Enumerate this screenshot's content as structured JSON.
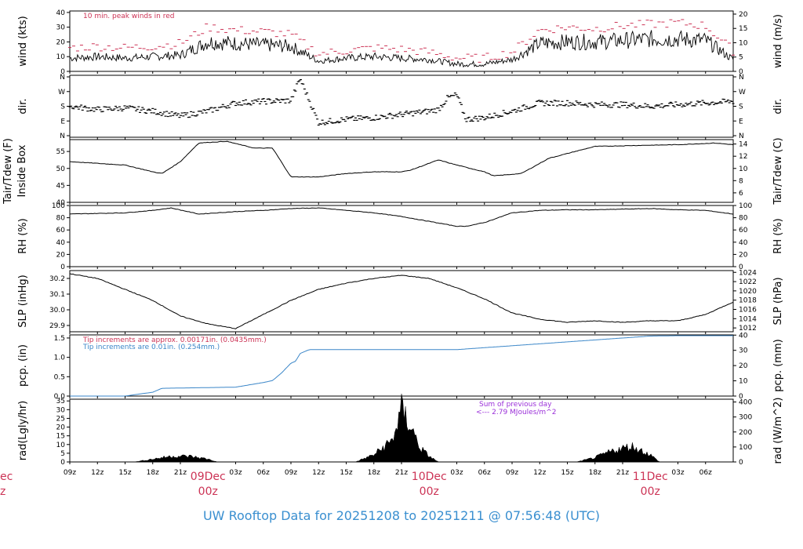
{
  "footer_title": "UW Rooftop Data for 20251208  to  20251211 @ 07:56:48  (UTC)",
  "colors": {
    "line": "#000000",
    "peak": "#cc3355",
    "precip": "#3a86c8",
    "annotation_purple": "#9b30d9",
    "date_label": "#cc3355",
    "title": "#3a8fd0"
  },
  "x_axis": {
    "tick_labels": [
      "09z",
      "12z",
      "15z",
      "18z",
      "21z",
      "03z",
      "06z",
      "09z",
      "12z",
      "15z",
      "18z",
      "21z",
      "03z",
      "06z",
      "09z",
      "12z",
      "15z",
      "18z",
      "21z",
      "03z",
      "06z"
    ],
    "day_labels": [
      {
        "date": "09Dec",
        "hour": "00z"
      },
      {
        "date": "10Dec",
        "hour": "00z"
      },
      {
        "date": "11Dec",
        "hour": "00z"
      }
    ],
    "edge_label": {
      "date": "ec",
      "hour": "z"
    }
  },
  "chart_data": [
    {
      "type": "line",
      "panel": "wind",
      "ylabel_left": "wind (kts)",
      "ylabel_right": "wind (m/s)",
      "yticks_left": [
        "0",
        "10",
        "20",
        "30",
        "40"
      ],
      "yticks_right": [
        "0",
        "5",
        "10",
        "15",
        "20"
      ],
      "ylim": [
        0,
        41
      ],
      "annotation": "10 min. peak winds in red",
      "series": [
        {
          "x": [
            0,
            3,
            6,
            9,
            12,
            15,
            18,
            21,
            24,
            27,
            30,
            33,
            36,
            39,
            42,
            45,
            48,
            51,
            54,
            57,
            60,
            63,
            66,
            69,
            72
          ],
          "values": [
            9,
            10,
            9,
            10,
            11,
            20,
            19,
            18,
            17,
            7,
            9,
            10,
            9,
            8,
            5,
            5,
            8,
            19,
            20,
            20,
            21,
            22,
            22,
            21,
            8
          ]
        },
        {
          "x": [
            0,
            3,
            6,
            9,
            12,
            15,
            18,
            21,
            24,
            27,
            30,
            33,
            36,
            39,
            42,
            45,
            48,
            51,
            54,
            57,
            60,
            63,
            66,
            69,
            72
          ],
          "values": [
            16,
            17,
            16,
            17,
            19,
            30,
            28,
            27,
            25,
            12,
            14,
            16,
            15,
            13,
            9,
            9,
            13,
            28,
            30,
            29,
            31,
            32,
            33,
            31,
            14
          ]
        }
      ]
    },
    {
      "type": "scatter",
      "panel": "dir",
      "ylabel_left": "dir.",
      "ylabel_right": "dir.",
      "yticks_left": [
        "N",
        "E",
        "S",
        "W",
        "N"
      ],
      "yticks_right": [
        "N",
        "E",
        "S",
        "W",
        "N"
      ],
      "ylim": [
        0,
        360
      ],
      "x": [
        0,
        3,
        6,
        9,
        12,
        15,
        18,
        21,
        24,
        25,
        27,
        30,
        33,
        36,
        39,
        40,
        41,
        42,
        43,
        45,
        48,
        51,
        54,
        57,
        60,
        63,
        66,
        69,
        72
      ],
      "values": [
        180,
        160,
        170,
        150,
        120,
        150,
        200,
        210,
        215,
        350,
        80,
        100,
        110,
        130,
        150,
        160,
        230,
        250,
        100,
        110,
        150,
        200,
        200,
        190,
        190,
        180,
        190,
        200,
        210
      ]
    },
    {
      "type": "line",
      "panel": "temp",
      "ylabel_left": "Tair/Tdew (F)\nInside Box",
      "ylabel_right": "Tair/Tdew (C)",
      "yticks_left": [
        "40",
        "45",
        "50",
        "55"
      ],
      "yticks_right": [
        "6",
        "8",
        "10",
        "12",
        "14"
      ],
      "ylim": [
        40,
        58.5
      ],
      "x": [
        0,
        3,
        6,
        9,
        10,
        12,
        14,
        17,
        20,
        21,
        22,
        24,
        27,
        30,
        33,
        36,
        37,
        40,
        42,
        45,
        46,
        49,
        52,
        57,
        62,
        66,
        70,
        72
      ],
      "values": [
        52,
        51.5,
        51,
        49,
        48.5,
        52,
        57.5,
        58,
        56,
        56,
        56,
        47.5,
        47.5,
        48.5,
        49,
        49,
        49.5,
        52.5,
        51,
        49,
        47.8,
        48.5,
        53,
        56.5,
        56.8,
        57,
        57.5,
        57
      ]
    },
    {
      "type": "line",
      "panel": "rh",
      "ylabel_left": "RH (%)",
      "ylabel_right": "RH (%)",
      "yticks_left": [
        "0",
        "20",
        "40",
        "60",
        "80",
        "100"
      ],
      "yticks_right": [
        "0",
        "20",
        "40",
        "60",
        "80",
        "100"
      ],
      "ylim": [
        0,
        100
      ],
      "x": [
        0,
        3,
        6,
        9,
        11,
        14,
        18,
        21,
        24,
        27,
        30,
        33,
        36,
        39,
        42,
        43,
        45,
        48,
        51,
        54,
        57,
        60,
        63,
        66,
        69,
        72
      ],
      "values": [
        86,
        87,
        88,
        92,
        96,
        86,
        90,
        92,
        95,
        96,
        92,
        88,
        82,
        74,
        66,
        66,
        72,
        88,
        92,
        93,
        93,
        94,
        95,
        93,
        92,
        86
      ]
    },
    {
      "type": "line",
      "panel": "slp",
      "ylabel_left": "SLP (inHg)",
      "ylabel_right": "SLP (hPa)",
      "yticks_left": [
        "29.9",
        "30.0",
        "30.1",
        "30.2"
      ],
      "yticks_right": [
        "1012",
        "1014",
        "1016",
        "1018",
        "1020",
        "1022",
        "1024"
      ],
      "ylim": [
        29.86,
        30.25
      ],
      "x": [
        0,
        3,
        6,
        9,
        12,
        15,
        18,
        21,
        24,
        27,
        30,
        33,
        36,
        39,
        42,
        45,
        48,
        51,
        54,
        57,
        60,
        63,
        66,
        69,
        72
      ],
      "values": [
        30.23,
        30.2,
        30.13,
        30.06,
        29.96,
        29.91,
        29.88,
        29.97,
        30.06,
        30.13,
        30.17,
        30.2,
        30.22,
        30.2,
        30.14,
        30.07,
        29.98,
        29.94,
        29.92,
        29.93,
        29.92,
        29.93,
        29.93,
        29.97,
        30.05
      ]
    },
    {
      "type": "line",
      "panel": "pcp",
      "ylabel_left": "pcp. (in)",
      "ylabel_right": "pcp. (mm)",
      "yticks_left": [
        "0.0",
        "0.5",
        "1.0",
        "1.5"
      ],
      "yticks_right": [
        "0",
        "10",
        "20",
        "30",
        "40"
      ],
      "ylim": [
        0,
        1.58
      ],
      "annotations": [
        "Tip increments are approx. 0.00171in. (0.0435mm.)",
        "Tip increments are 0.01in. (0.254mm.)"
      ],
      "x": [
        0,
        6,
        9,
        10,
        18,
        21,
        22,
        23,
        24,
        24.5,
        25,
        26,
        30,
        36,
        42,
        45,
        48,
        51,
        54,
        57,
        60,
        63,
        66,
        69,
        72
      ],
      "values": [
        0,
        0,
        0.1,
        0.2,
        0.23,
        0.35,
        0.4,
        0.6,
        0.85,
        0.9,
        1.1,
        1.2,
        1.2,
        1.2,
        1.2,
        1.25,
        1.3,
        1.35,
        1.4,
        1.45,
        1.5,
        1.55,
        1.56,
        1.56,
        1.56
      ]
    },
    {
      "type": "area",
      "panel": "rad",
      "ylabel_left": "rad(Lgly/hr)",
      "ylabel_right": "rad (W/m^2)",
      "yticks_left": [
        "0",
        "5",
        "10",
        "15",
        "20",
        "25",
        "30",
        "35"
      ],
      "yticks_right": [
        "0",
        "100",
        "200",
        "300",
        "400"
      ],
      "ylim": [
        0,
        36
      ],
      "annotation_lines": [
        "Sum of previous day",
        "<--- 2.79 MJoules/m^2"
      ],
      "x": [
        0,
        7,
        9,
        11,
        13,
        15,
        16,
        31,
        33,
        35,
        36,
        37,
        38,
        39,
        40,
        55,
        57,
        59,
        61,
        63,
        64,
        72
      ],
      "values": [
        0,
        0,
        2,
        4,
        4,
        2,
        0,
        0,
        5,
        15,
        36,
        25,
        10,
        4,
        0,
        0,
        3,
        8,
        11,
        5,
        0,
        0
      ]
    }
  ]
}
